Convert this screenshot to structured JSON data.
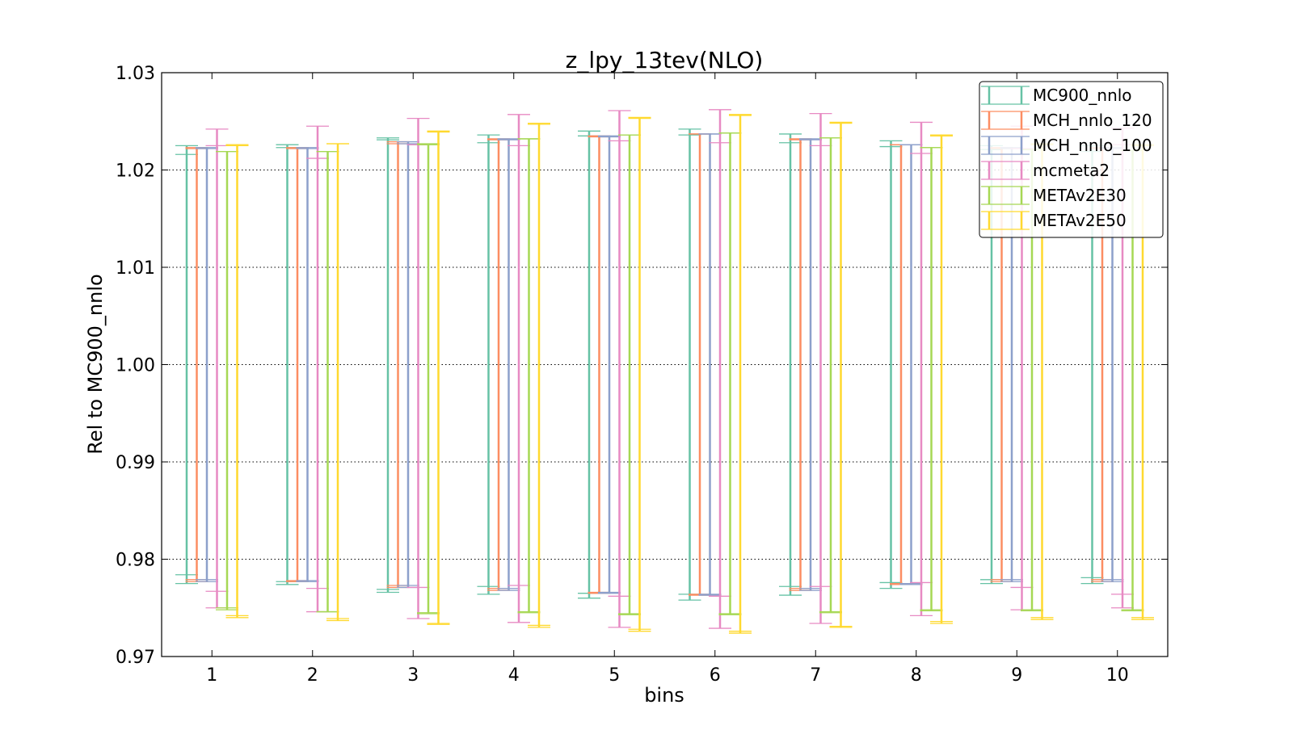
{
  "chart_data": {
    "type": "errorbar",
    "title": "z_lpy_13tev(NLO)",
    "xlabel": "bins",
    "ylabel": "Rel to MC900_nnlo",
    "ylim": [
      0.97,
      1.03
    ],
    "yticks": [
      "0.97",
      "0.98",
      "0.99",
      "1.00",
      "1.01",
      "1.02",
      "1.03"
    ],
    "categories": [
      "1",
      "2",
      "3",
      "4",
      "5",
      "6",
      "7",
      "8",
      "9",
      "10"
    ],
    "grid": "y-dotted",
    "legend_position": "top-right",
    "series": [
      {
        "name": "MC900_nnlo",
        "color": "#66c2a5",
        "inner_low": [
          0.9784,
          0.9777,
          0.9769,
          0.9772,
          0.9765,
          0.9764,
          0.9772,
          0.9776,
          0.9779,
          0.9781
        ],
        "inner_high": [
          1.0216,
          1.0223,
          1.0231,
          1.0228,
          1.0235,
          1.0236,
          1.0228,
          1.0224,
          1.0221,
          1.0219
        ],
        "outer_low": [
          0.9775,
          0.9774,
          0.9766,
          0.9764,
          0.976,
          0.9758,
          0.9763,
          0.977,
          0.9775,
          0.9775
        ],
        "outer_high": [
          1.0225,
          1.0226,
          1.0233,
          1.0236,
          1.024,
          1.0242,
          1.0237,
          1.023,
          1.0225,
          1.0225
        ]
      },
      {
        "name": "MCH_nnlo_120",
        "color": "#fc8d62",
        "inner_low": [
          0.9779,
          0.9778,
          0.9773,
          0.977,
          0.9766,
          0.9764,
          0.977,
          0.9775,
          0.9779,
          0.9779
        ],
        "inner_high": [
          1.0222,
          1.0222,
          1.0227,
          1.0231,
          1.0234,
          1.0237,
          1.0231,
          1.0226,
          1.0222,
          1.0222
        ],
        "outer_low": [
          0.9777,
          0.9777,
          0.9771,
          0.9768,
          0.9765,
          0.9763,
          0.9768,
          0.9774,
          0.9777,
          0.9777
        ],
        "outer_high": [
          1.0223,
          1.0223,
          1.0229,
          1.0232,
          1.0235,
          1.0237,
          1.0232,
          1.0226,
          1.0223,
          1.0223
        ]
      },
      {
        "name": "MCH_nnlo_100",
        "color": "#8da0cb",
        "inner_low": [
          0.9779,
          0.9778,
          0.9773,
          0.977,
          0.9766,
          0.9764,
          0.977,
          0.9775,
          0.9779,
          0.9779
        ],
        "inner_high": [
          1.0222,
          1.0222,
          1.0227,
          1.0231,
          1.0234,
          1.0237,
          1.0231,
          1.0226,
          1.0222,
          1.0222
        ],
        "outer_low": [
          0.9777,
          0.9777,
          0.9771,
          0.9768,
          0.9765,
          0.9763,
          0.9768,
          0.9774,
          0.9777,
          0.9777
        ],
        "outer_high": [
          1.0223,
          1.0223,
          1.0229,
          1.0232,
          1.0235,
          1.0237,
          1.0232,
          1.0226,
          1.0223,
          1.0223
        ]
      },
      {
        "name": "mcmeta2",
        "color": "#e78ac3",
        "inner_low": [
          0.9767,
          0.977,
          0.9771,
          0.9773,
          0.9762,
          0.9762,
          0.9772,
          0.9776,
          0.9771,
          0.9764
        ],
        "inner_high": [
          1.0225,
          1.0212,
          1.0226,
          1.0225,
          1.023,
          1.0228,
          1.0225,
          1.0217,
          1.0222,
          1.0226
        ],
        "outer_low": [
          0.975,
          0.9746,
          0.9739,
          0.9735,
          0.973,
          0.9729,
          0.9734,
          0.9742,
          0.9748,
          0.975
        ],
        "outer_high": [
          1.0242,
          1.0245,
          1.0253,
          1.0257,
          1.0261,
          1.0262,
          1.0258,
          1.0249,
          1.0245,
          1.0243
        ]
      },
      {
        "name": "METAv2E30",
        "color": "#a6d854",
        "inner_low": [
          0.975,
          0.9746,
          0.9745,
          0.9746,
          0.9744,
          0.9744,
          0.9746,
          0.9748,
          0.9748,
          0.9748
        ],
        "inner_high": [
          1.0219,
          1.0219,
          1.0226,
          1.0232,
          1.0236,
          1.0238,
          1.0233,
          1.0223,
          1.0221,
          1.022
        ],
        "outer_low": [
          0.9748,
          0.9746,
          0.9744,
          0.9745,
          0.9743,
          0.9743,
          0.9745,
          0.9747,
          0.9747,
          0.9747
        ],
        "outer_high": [
          1.0219,
          1.0219,
          1.0227,
          1.0232,
          1.0236,
          1.0238,
          1.0233,
          1.0223,
          1.0221,
          1.022
        ]
      },
      {
        "name": "METAv2E50",
        "color": "#ffd92f",
        "inner_low": [
          0.9742,
          0.9739,
          0.9734,
          0.9732,
          0.9728,
          0.9726,
          0.9731,
          0.9736,
          0.974,
          0.974
        ],
        "inner_high": [
          1.0225,
          1.0227,
          1.0239,
          1.0247,
          1.0253,
          1.0256,
          1.0248,
          1.0235,
          1.0226,
          1.0225
        ],
        "outer_low": [
          0.974,
          0.9737,
          0.9733,
          0.973,
          0.9726,
          0.9724,
          0.973,
          0.9734,
          0.9738,
          0.9738
        ],
        "outer_high": [
          1.0226,
          1.0227,
          1.024,
          1.0248,
          1.0254,
          1.0257,
          1.0249,
          1.0236,
          1.0227,
          1.0226
        ]
      }
    ]
  }
}
